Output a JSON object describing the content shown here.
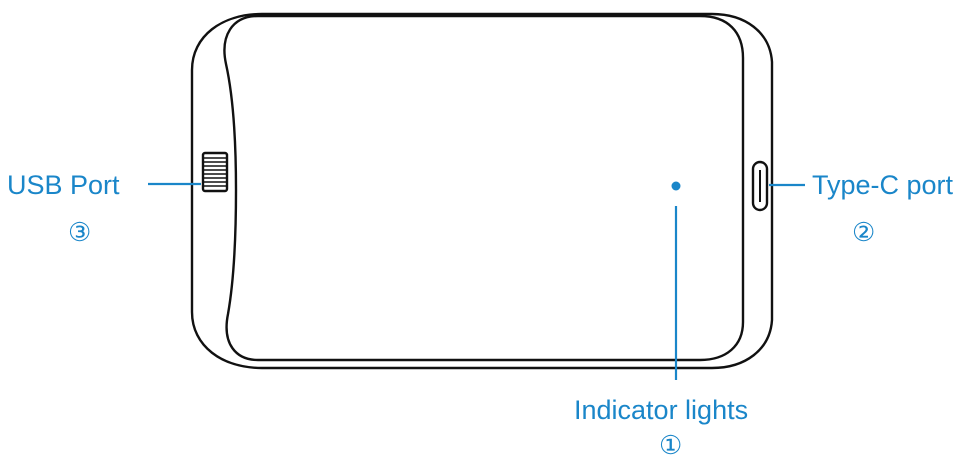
{
  "callouts": {
    "usb_port": {
      "label": "USB Port",
      "number": "③"
    },
    "type_c_port": {
      "label": "Type-C port",
      "number": "②"
    },
    "indicator_lights": {
      "label": "Indicator lights",
      "number": "①"
    }
  },
  "colors": {
    "accent": "#1a86c9",
    "outline": "#111111",
    "background": "#ffffff"
  }
}
